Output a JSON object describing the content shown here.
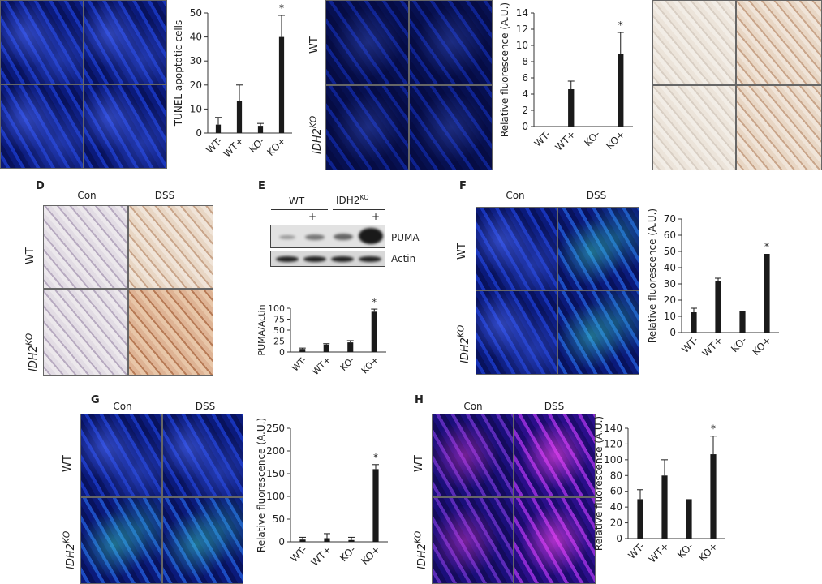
{
  "labels": {
    "wt": "WT",
    "ko_base": "IDH2",
    "ko_sup": "KO",
    "con": "Con",
    "dss": "DSS",
    "blot_wt": "WT",
    "blot_ko_base": "IDH2",
    "blot_ko_sup": "KO",
    "blot_signs": [
      "-",
      "+",
      "-",
      "+"
    ],
    "puma": "PUMA",
    "actin": "Actin"
  },
  "panel_letters": {
    "d": "D",
    "e": "E",
    "f": "F",
    "g": "G",
    "h": "H"
  },
  "chart_data": [
    {
      "id": "tunel",
      "type": "bar",
      "categories": [
        "WT-",
        "WT+",
        "KO-",
        "KO+"
      ],
      "values": [
        3.5,
        13.5,
        3,
        40
      ],
      "errors": [
        3,
        6.5,
        1,
        9
      ],
      "ylabel": "TUNEL apoptotic cells",
      "ylim": [
        0,
        50
      ],
      "yticks": [
        0,
        10,
        20,
        30,
        40,
        50
      ],
      "annotations": [
        {
          "category": "KO+",
          "text": "*"
        }
      ]
    },
    {
      "id": "top-middle",
      "type": "bar",
      "categories": [
        "WT-",
        "WT+",
        "KO-",
        "KO+"
      ],
      "values": [
        0,
        4.6,
        0,
        8.9
      ],
      "errors": [
        0,
        1,
        0,
        2.7
      ],
      "ylabel": "Relative fluorescence (A.U.)",
      "ylim": [
        0,
        14
      ],
      "yticks": [
        0,
        2,
        4,
        6,
        8,
        10,
        12,
        14
      ],
      "annotations": [
        {
          "category": "KO+",
          "text": "*"
        }
      ]
    },
    {
      "id": "puma-actin",
      "type": "bar",
      "categories": [
        "WT-",
        "WT+",
        "KO-",
        "KO+"
      ],
      "values": [
        7,
        17,
        22,
        92
      ],
      "errors": [
        2,
        2,
        4,
        6
      ],
      "ylabel": "PUMA/Actin",
      "ylim": [
        0,
        100
      ],
      "yticks": [
        0,
        25,
        50,
        75,
        100
      ],
      "annotations": [
        {
          "category": "KO+",
          "text": "*"
        }
      ]
    },
    {
      "id": "f",
      "type": "bar",
      "categories": [
        "WT-",
        "WT+",
        "KO-",
        "KO+"
      ],
      "values": [
        12.5,
        31.5,
        13,
        48.5
      ],
      "errors": [
        2.5,
        2,
        0,
        0
      ],
      "ylabel": "Relative fluorescence (A.U.)",
      "ylim": [
        0,
        70
      ],
      "yticks": [
        0,
        10,
        20,
        30,
        40,
        50,
        60,
        70
      ],
      "annotations": [
        {
          "category": "KO+",
          "text": "*"
        }
      ]
    },
    {
      "id": "g",
      "type": "bar",
      "categories": [
        "WT-",
        "WT+",
        "KO-",
        "KO+"
      ],
      "values": [
        5,
        8,
        4,
        160
      ],
      "errors": [
        5,
        10,
        6,
        10
      ],
      "ylabel": "Relative fluorescence (A.U.)",
      "ylim": [
        0,
        250
      ],
      "yticks": [
        0,
        50,
        100,
        150,
        200,
        250
      ],
      "annotations": [
        {
          "category": "KO+",
          "text": "*"
        }
      ]
    },
    {
      "id": "h",
      "type": "bar",
      "categories": [
        "WT-",
        "WT+",
        "KO-",
        "KO+"
      ],
      "values": [
        50,
        80,
        50,
        107
      ],
      "errors": [
        12,
        20,
        0,
        23
      ],
      "ylabel": "Relative fluorescence (A.U.)",
      "ylim": [
        0,
        140
      ],
      "yticks": [
        0,
        20,
        40,
        60,
        80,
        100,
        120,
        140
      ],
      "annotations": [
        {
          "category": "KO+",
          "text": "*"
        }
      ]
    }
  ]
}
